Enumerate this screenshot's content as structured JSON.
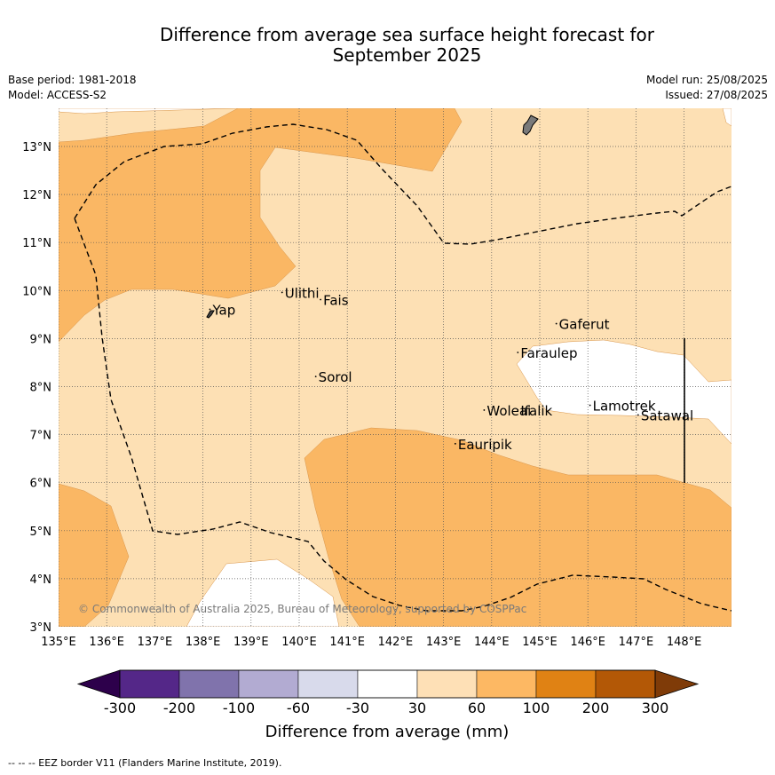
{
  "title": {
    "line1": "Difference from average sea surface height forecast for",
    "line2": "September 2025"
  },
  "meta": {
    "base_period": "Base period: 1981-2018",
    "model": "Model: ACCESS-S2",
    "model_run": "Model run: 25/08/2025",
    "issued": "Issued: 27/08/2025"
  },
  "map": {
    "lon_range": [
      135,
      149
    ],
    "lat_range": [
      3,
      13.8
    ],
    "x_ticks": [
      "135°E",
      "136°E",
      "137°E",
      "138°E",
      "139°E",
      "140°E",
      "141°E",
      "142°E",
      "143°E",
      "144°E",
      "145°E",
      "146°E",
      "147°E",
      "148°E"
    ],
    "y_ticks": [
      "3°N",
      "4°N",
      "5°N",
      "6°N",
      "7°N",
      "8°N",
      "9°N",
      "10°N",
      "11°N",
      "12°N",
      "13°N"
    ],
    "places": [
      {
        "name": "Yap",
        "lon": 138.2,
        "lat": 9.5
      },
      {
        "name": "Ulithi",
        "lon": 139.7,
        "lat": 9.85
      },
      {
        "name": "Fais",
        "lon": 140.5,
        "lat": 9.7
      },
      {
        "name": "Sorol",
        "lon": 140.4,
        "lat": 8.1
      },
      {
        "name": "Gaferut",
        "lon": 145.4,
        "lat": 9.2
      },
      {
        "name": "Faraulep",
        "lon": 144.6,
        "lat": 8.6
      },
      {
        "name": "Lamotrek",
        "lon": 146.1,
        "lat": 7.5
      },
      {
        "name": "Woleai",
        "lon": 143.9,
        "lat": 7.4
      },
      {
        "name": "Ifalik",
        "lon": 144.6,
        "lat": 7.4
      },
      {
        "name": "Satawal",
        "lon": 147.1,
        "lat": 7.3
      },
      {
        "name": "Eauripik",
        "lon": 143.3,
        "lat": 6.7
      }
    ],
    "copyright": "© Commonwealth of Australia 2025, Bureau of Meteorology, supported by COSPPac",
    "colors": {
      "band_30_60": "#fde0b4",
      "band_60_100": "#fab764",
      "band_neutral": "#ffffff"
    }
  },
  "colorbar": {
    "labels": [
      "-300",
      "-200",
      "-100",
      "-60",
      "-30",
      "30",
      "60",
      "100",
      "200",
      "300"
    ],
    "colors": [
      "#2d004b",
      "#542788",
      "#8073ac",
      "#b2abd2",
      "#d8daeb",
      "#ffffff",
      "#fee0b6",
      "#fdb863",
      "#e08214",
      "#b35806",
      "#7f3b08"
    ],
    "title": "Difference from average (mm)"
  },
  "footer": "--  --  -- EEZ border V11 (Flanders Marine Institute, 2019)."
}
